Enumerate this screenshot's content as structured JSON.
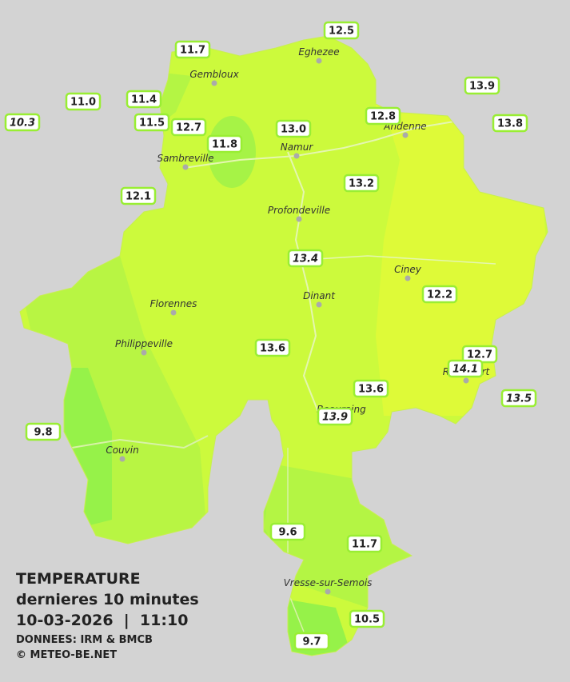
{
  "legend": {
    "title": "TEMPERATURE",
    "subtitle": "dernieres 10 minutes",
    "datetime": "10-03-2026  |  11:10",
    "source": "DONNEES: IRM & BMCB",
    "copyright": "© METEO-BE.NET"
  },
  "cities": [
    "Gembloux",
    "Eghezee",
    "Andenne",
    "Namur",
    "Sambreville",
    "Profondeville",
    "Ciney",
    "Dinant",
    "Florennes",
    "Philippeville",
    "Rochefort",
    "Beauraing",
    "Couvin",
    "Vresse-sur-Semois"
  ],
  "stations": [
    {
      "value": "12.5",
      "italic": false
    },
    {
      "value": "11.7",
      "italic": false
    },
    {
      "value": "11.0",
      "italic": false
    },
    {
      "value": "11.4",
      "italic": false
    },
    {
      "value": "10.3",
      "italic": true
    },
    {
      "value": "11.5",
      "italic": false
    },
    {
      "value": "12.7",
      "italic": false
    },
    {
      "value": "11.8",
      "italic": false
    },
    {
      "value": "13.0",
      "italic": false
    },
    {
      "value": "12.8",
      "italic": false
    },
    {
      "value": "13.9",
      "italic": false
    },
    {
      "value": "13.8",
      "italic": false
    },
    {
      "value": "13.2",
      "italic": false
    },
    {
      "value": "12.1",
      "italic": false
    },
    {
      "value": "13.4",
      "italic": true
    },
    {
      "value": "12.2",
      "italic": false
    },
    {
      "value": "13.6",
      "italic": false
    },
    {
      "value": "12.7",
      "italic": false
    },
    {
      "value": "14.1",
      "italic": true
    },
    {
      "value": "13.6",
      "italic": false
    },
    {
      "value": "13.9",
      "italic": true
    },
    {
      "value": "13.5",
      "italic": true
    },
    {
      "value": "9.8",
      "italic": false
    },
    {
      "value": "9.6",
      "italic": false
    },
    {
      "value": "11.7",
      "italic": false
    },
    {
      "value": "10.5",
      "italic": false
    },
    {
      "value": "9.7",
      "italic": false
    }
  ]
}
